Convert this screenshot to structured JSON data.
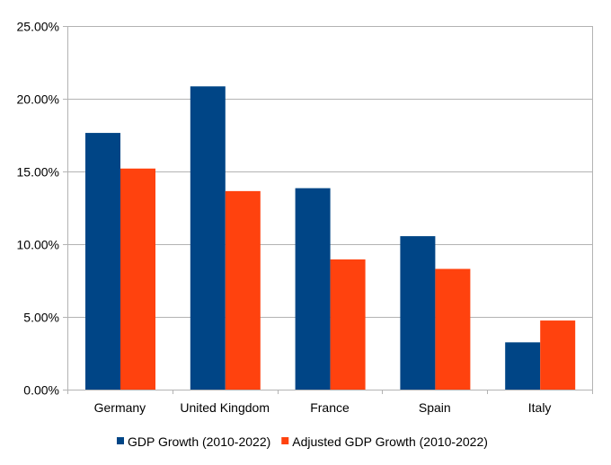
{
  "chart_data": {
    "type": "bar",
    "title": "",
    "xlabel": "",
    "ylabel": "",
    "categories": [
      "Germany",
      "United Kingdom",
      "France",
      "Spain",
      "Italy"
    ],
    "series": [
      {
        "name": "GDP Growth (2010-2022)",
        "color": "#004586",
        "values": [
          17.65,
          20.85,
          13.85,
          10.55,
          3.25
        ]
      },
      {
        "name": "Adjusted GDP Growth (2010-2022)",
        "color": "#ff420e",
        "values": [
          15.2,
          13.65,
          8.95,
          8.3,
          4.75
        ]
      }
    ],
    "ylim": [
      0,
      25
    ],
    "yticks": [
      0,
      5,
      10,
      15,
      20,
      25
    ],
    "ytick_labels": [
      "0.00%",
      "5.00%",
      "10.00%",
      "15.00%",
      "20.00%",
      "25.00%"
    ],
    "grid": true,
    "legend_position": "bottom"
  }
}
